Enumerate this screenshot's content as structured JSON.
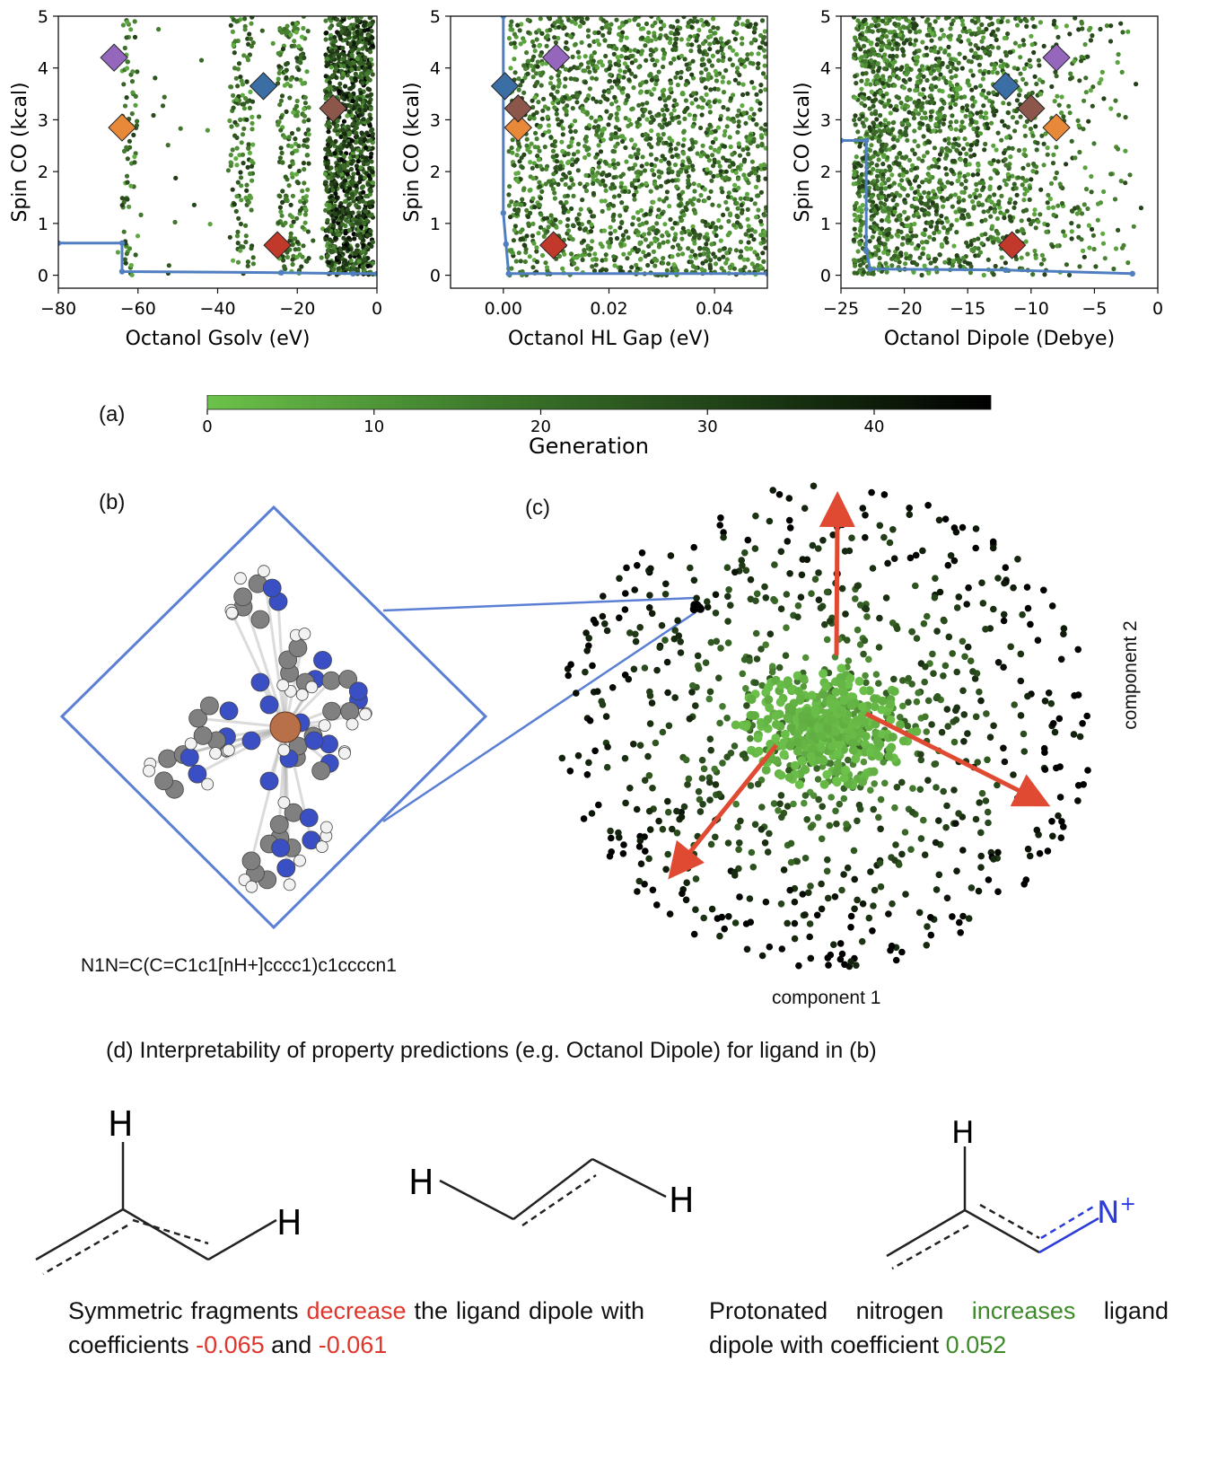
{
  "chart_data": [
    {
      "type": "scatter",
      "xlabel": "Octanol Gsolv (eV)",
      "ylabel": "Spin CO (kcal)",
      "xlim": [
        -80,
        0
      ],
      "ylim": [
        -0.25,
        5
      ],
      "xticks": [
        -80,
        -60,
        -40,
        -20,
        0
      ],
      "xtick_labels": [
        "−80",
        "−60",
        "−40",
        "−20",
        "0"
      ],
      "yticks": [
        0,
        1,
        2,
        3,
        4,
        5
      ],
      "pareto_front": [
        [
          -80,
          0.62
        ],
        [
          -64,
          0.62
        ],
        [
          -64,
          0.07
        ],
        [
          -24,
          0.05
        ],
        [
          -6,
          0.03
        ],
        [
          0,
          0.03
        ]
      ],
      "markers": [
        {
          "x": -66,
          "y": 4.2,
          "color": "#9467bd"
        },
        {
          "x": -28.5,
          "y": 3.65,
          "color": "#3a6ea5"
        },
        {
          "x": -64,
          "y": 2.85,
          "color": "#e8893a"
        },
        {
          "x": -11,
          "y": 3.22,
          "color": "#8c564b"
        },
        {
          "x": -25,
          "y": 0.58,
          "color": "#c0392b"
        }
      ]
    },
    {
      "type": "scatter",
      "xlabel": "Octanol HL Gap (eV)",
      "ylabel": "Spin CO (kcal)",
      "xlim": [
        -0.01,
        0.05
      ],
      "ylim": [
        -0.25,
        5
      ],
      "xticks": [
        0,
        0.02,
        0.04
      ],
      "xtick_labels": [
        "0.00",
        "0.02",
        "0.04"
      ],
      "yticks": [
        0,
        1,
        2,
        3,
        4,
        5
      ],
      "pareto_front": [
        [
          0.0,
          5.0
        ],
        [
          0.0,
          1.2
        ],
        [
          0.0005,
          0.6
        ],
        [
          0.001,
          0.03
        ],
        [
          0.05,
          0.03
        ]
      ],
      "markers": [
        {
          "x": 0.01,
          "y": 4.2,
          "color": "#9467bd"
        },
        {
          "x": 0.0003,
          "y": 3.65,
          "color": "#3a6ea5"
        },
        {
          "x": 0.0028,
          "y": 2.85,
          "color": "#e8893a"
        },
        {
          "x": 0.0028,
          "y": 3.22,
          "color": "#8c564b"
        },
        {
          "x": 0.0095,
          "y": 0.58,
          "color": "#c0392b"
        }
      ]
    },
    {
      "type": "scatter",
      "xlabel": "Octanol Dipole (Debye)",
      "ylabel": "Spin CO (kcal)",
      "xlim": [
        -25,
        0
      ],
      "ylim": [
        -0.25,
        5
      ],
      "xticks": [
        -25,
        -20,
        -15,
        -10,
        -5,
        0
      ],
      "xtick_labels": [
        "−25",
        "−20",
        "−15",
        "−10",
        "−5",
        "0"
      ],
      "yticks": [
        0,
        1,
        2,
        3,
        4,
        5
      ],
      "pareto_front": [
        [
          -25,
          2.6
        ],
        [
          -23,
          2.6
        ],
        [
          -23,
          0.48
        ],
        [
          -22.7,
          0.12
        ],
        [
          -12,
          0.1
        ],
        [
          -2,
          0.03
        ]
      ],
      "markers": [
        {
          "x": -8,
          "y": 4.2,
          "color": "#9467bd"
        },
        {
          "x": -12,
          "y": 3.65,
          "color": "#3a6ea5"
        },
        {
          "x": -8,
          "y": 2.85,
          "color": "#e8893a"
        },
        {
          "x": -10,
          "y": 3.22,
          "color": "#8c564b"
        },
        {
          "x": -11.5,
          "y": 0.58,
          "color": "#c0392b"
        }
      ]
    }
  ],
  "colorbar": {
    "label": "Generation",
    "min": 0,
    "max": 47,
    "ticks": [
      0,
      10,
      20,
      30,
      40
    ],
    "color_low": "#6cc24a",
    "color_high": "#000000"
  },
  "labels": {
    "a": "(a)",
    "b": "(b)",
    "c": "(c)"
  },
  "panel_b": {
    "smiles": "N1N=C(C=C1c1[nH+]cccc1)c1ccccn1"
  },
  "panel_c": {
    "xlabel": "component 1",
    "ylabel": "component 2"
  },
  "panel_d": {
    "title": "(d) Interpretability of property predictions (e.g. Octanol Dipole) for ligand in (b)",
    "left_text": {
      "part1": "Symmetric fragments ",
      "word": "decrease",
      "part2": " the ligand dipole with coefficients ",
      "coef1": "-0.065",
      "and": " and ",
      "coef2": "-0.061"
    },
    "right_text": {
      "part1": "Protonated nitrogen ",
      "word": "increases",
      "part2": " ligand dipole with coefficient ",
      "coef": "0.052"
    },
    "atoms": {
      "h": "H",
      "n": "N",
      "plus": "+"
    }
  }
}
